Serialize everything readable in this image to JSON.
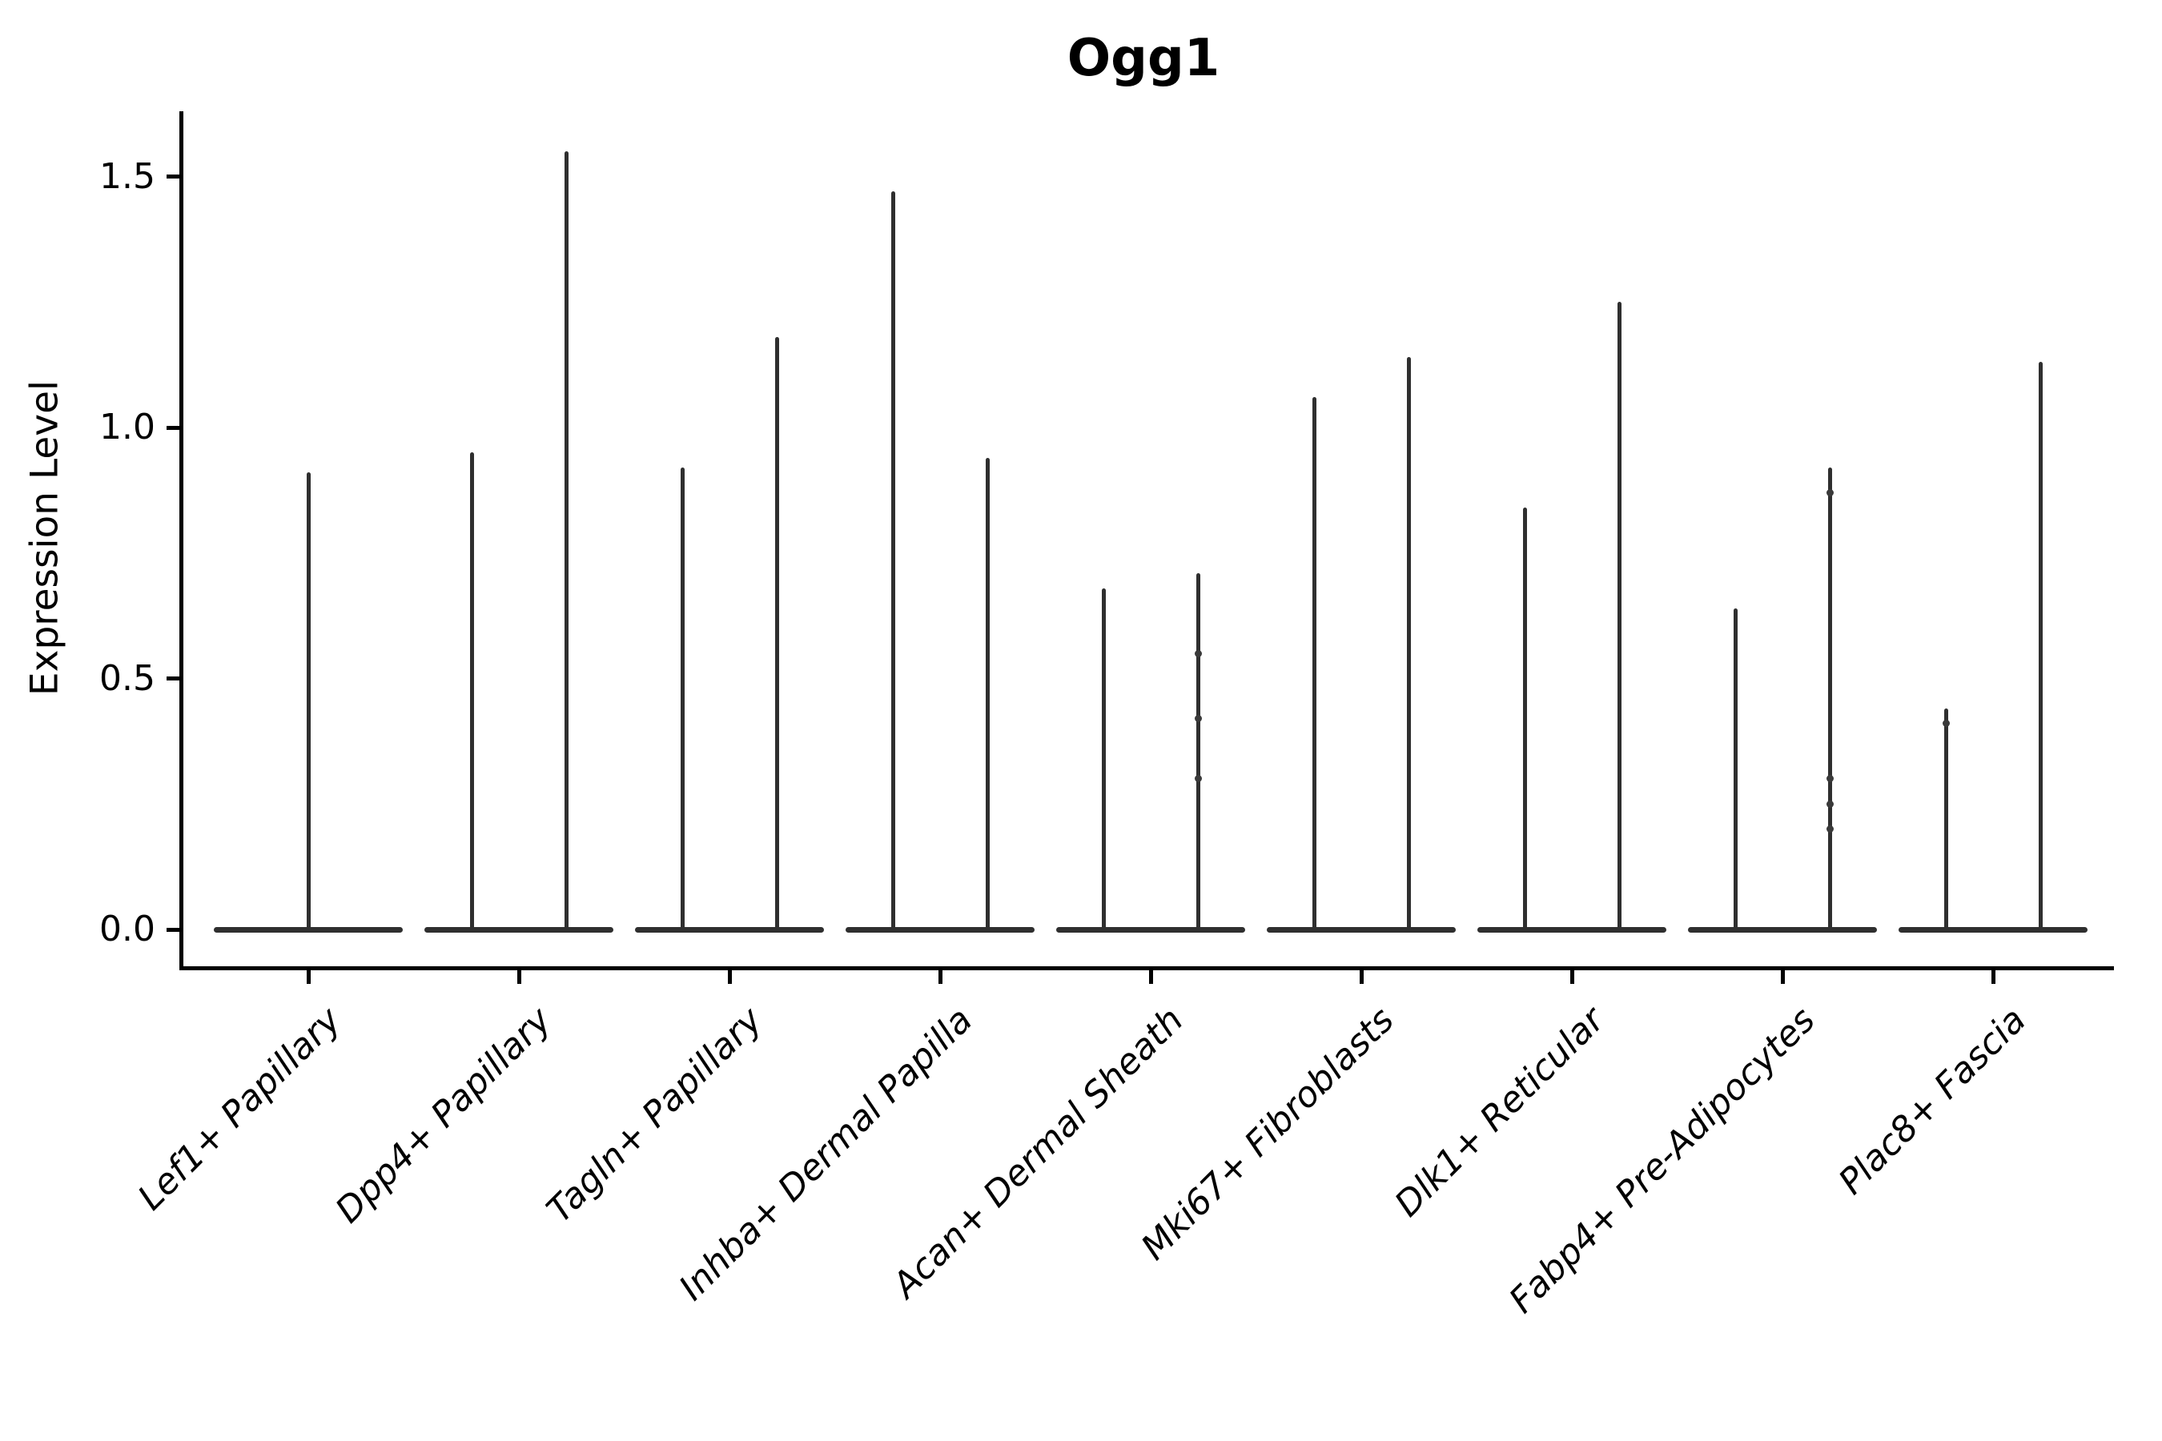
{
  "title": "Ogg1",
  "y_axis": {
    "label": "Expression Level",
    "tick_labels": [
      "0.0",
      "0.5",
      "1.0",
      "1.5"
    ]
  },
  "colors": {
    "background": "#ffffff",
    "spine": "#000000",
    "text": "#000000",
    "violin_stroke": "#2f2f2f",
    "point": "#3a3a3a"
  },
  "chart_data": {
    "type": "violin",
    "title": "Ogg1",
    "xlabel": "",
    "ylabel": "Expression Level",
    "ylim": [
      0,
      1.63
    ],
    "yticks": [
      0.0,
      0.5,
      1.0,
      1.5
    ],
    "grid": false,
    "legend_position": "none",
    "description": "Needle-thin violins: bulk of density collapsed at 0 (flat base), single thin spike rising to each violin's maximum expression value. Categories with two violins are dodged pairs sharing a merged base; Lef1+ Papillary has one full-width centered violin.",
    "categories": [
      "Lef1+ Papillary",
      "Dpp4+ Papillary",
      "Tagln+ Papillary",
      "Inhba+ Dermal Papilla",
      "Acan+ Dermal Sheath",
      "Mki67+ Fibroblasts",
      "Dlk1+ Reticular",
      "Fabp4+ Pre-Adipocytes",
      "Plac8+ Fascia"
    ],
    "violins": [
      {
        "category": "Lef1+ Papillary",
        "maxima": [
          0.91
        ],
        "dots": [
          []
        ]
      },
      {
        "category": "Dpp4+ Papillary",
        "maxima": [
          0.95,
          1.55
        ],
        "dots": [
          [],
          []
        ]
      },
      {
        "category": "Tagln+ Papillary",
        "maxima": [
          0.92,
          1.18
        ],
        "dots": [
          [],
          []
        ]
      },
      {
        "category": "Inhba+ Dermal Papilla",
        "maxima": [
          1.47,
          0.94
        ],
        "dots": [
          [],
          []
        ]
      },
      {
        "category": "Acan+ Dermal Sheath",
        "maxima": [
          0.68,
          0.71
        ],
        "dots": [
          [],
          [
            0.55,
            0.42,
            0.3
          ]
        ]
      },
      {
        "category": "Mki67+ Fibroblasts",
        "maxima": [
          1.06,
          1.14
        ],
        "dots": [
          [],
          []
        ]
      },
      {
        "category": "Dlk1+ Reticular",
        "maxima": [
          0.84,
          1.25
        ],
        "dots": [
          [],
          []
        ]
      },
      {
        "category": "Fabp4+ Pre-Adipocytes",
        "maxima": [
          0.64,
          0.92
        ],
        "dots": [
          [],
          [
            0.87,
            0.3,
            0.25,
            0.2
          ]
        ]
      },
      {
        "category": "Plac8+ Fascia",
        "maxima": [
          0.44,
          1.13
        ],
        "dots": [
          [
            0.41
          ],
          []
        ]
      }
    ]
  }
}
